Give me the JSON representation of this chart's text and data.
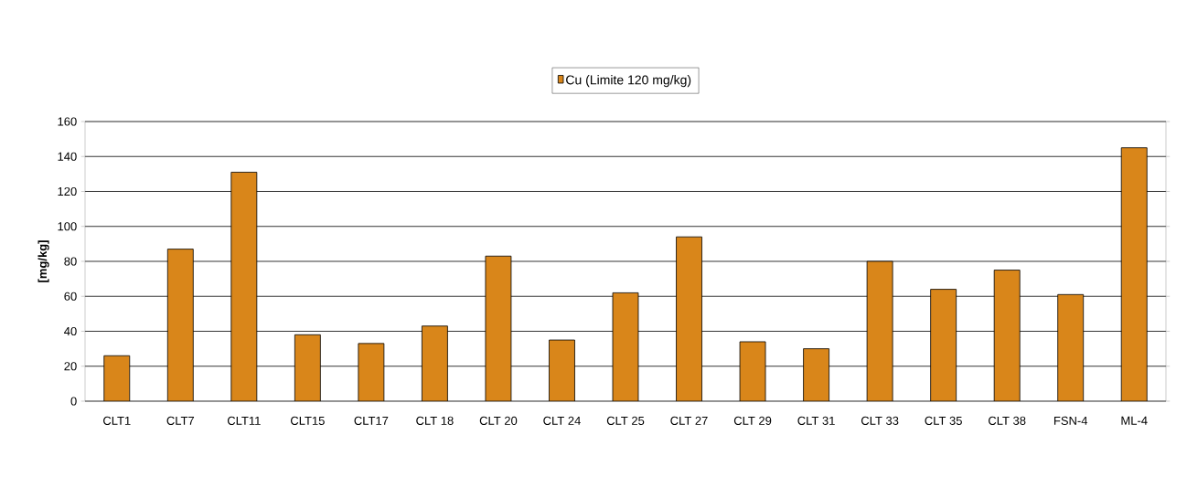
{
  "chart_data": {
    "type": "bar",
    "categories": [
      "CLT1",
      "CLT7",
      "CLT11",
      "CLT15",
      "CLT17",
      "CLT 18",
      "CLT 20",
      "CLT 24",
      "CLT 25",
      "CLT 27",
      "CLT 29",
      "CLT 31",
      "CLT 33",
      "CLT 35",
      "CLT 38",
      "FSN-4",
      "ML-4"
    ],
    "series": [
      {
        "name": "Cu (Limite 120 mg/kg)",
        "color": "#d9861a",
        "values": [
          26,
          87,
          131,
          38,
          33,
          43,
          83,
          35,
          62,
          94,
          34,
          30,
          80,
          64,
          75,
          61,
          145
        ]
      }
    ],
    "ylabel": "[mg/kg]",
    "ylim": [
      0,
      160
    ],
    "yticks": [
      0,
      20,
      40,
      60,
      80,
      100,
      120,
      140,
      160
    ],
    "grid": "y",
    "legend": "top"
  }
}
